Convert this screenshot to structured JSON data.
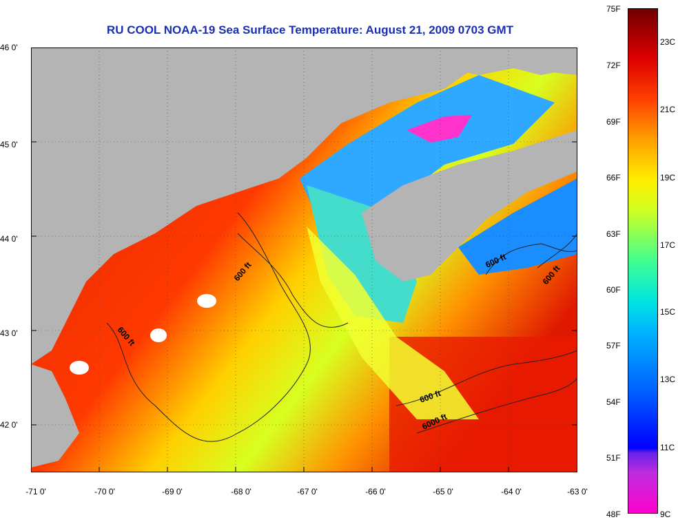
{
  "title": "RU COOL  NOAA-19  Sea Surface Temperature:  August 21, 2009 0703 GMT",
  "map": {
    "lat_labels": [
      "46 0'",
      "45 0'",
      "44 0'",
      "43 0'",
      "42 0'"
    ],
    "lon_labels": [
      "-71 0'",
      "-70 0'",
      "-69 0'",
      "-68 0'",
      "-67 0'",
      "-66 0'",
      "-65 0'",
      "-64 0'",
      "-63 0'"
    ],
    "lat_range": [
      41.5,
      46.0
    ],
    "lon_range": [
      -71.0,
      -63.0
    ],
    "land_color": "#b4b4b4",
    "contour_labels": [
      "600 ft",
      "600 ft",
      "600 ft",
      "600 ft",
      "600 ft",
      "6000 ft"
    ]
  },
  "colorbar": {
    "fahrenheit_labels": [
      "75F",
      "72F",
      "69F",
      "66F",
      "63F",
      "60F",
      "57F",
      "54F",
      "51F",
      "48F"
    ],
    "celsius_labels": [
      "23C",
      "21C",
      "19C",
      "17C",
      "15C",
      "13C",
      "11C",
      "9C"
    ],
    "stops": [
      "#ff00cc",
      "#8a2be2",
      "#0000ff",
      "#0077ff",
      "#00ddff",
      "#66ff99",
      "#ffff00",
      "#ff9900",
      "#ff2200",
      "#cc0000",
      "#7a0000"
    ]
  }
}
